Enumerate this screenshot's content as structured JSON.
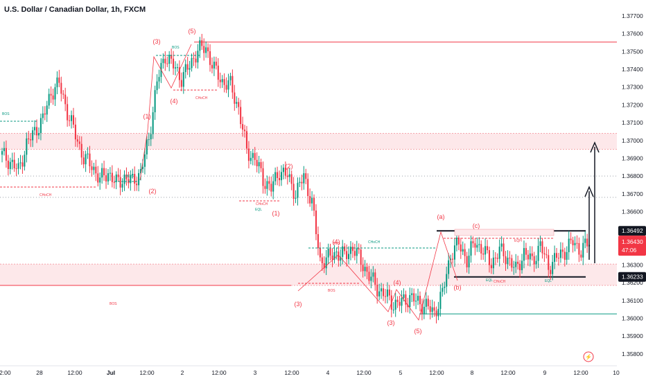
{
  "header": {
    "symbol_title": "U.S. Dollar / Canadian Dollar, 1h, FXCM"
  },
  "colors": {
    "up": "#089981",
    "down": "#f23645",
    "zone": "#fde8ea",
    "resistance_line": "#f23645",
    "support_line": "#089981",
    "price_tag_dark": "#131722",
    "current_tag": "#f23645"
  },
  "chart_data": {
    "type": "candlestick",
    "title": "U.S. Dollar / Canadian Dollar, 1h, FXCM",
    "y_axis": {
      "range": [
        1.358,
        1.3773
      ],
      "ticks": [
        "1.37700",
        "1.37600",
        "1.37500",
        "1.37400",
        "1.37300",
        "1.37200",
        "1.37100",
        "1.37000",
        "1.36900",
        "1.36800",
        "1.36700",
        "1.36600",
        "1.36300",
        "1.36200",
        "1.36100",
        "1.36000",
        "1.35900",
        "1.35800"
      ],
      "ticks_numeric": [
        1.377,
        1.376,
        1.375,
        1.374,
        1.373,
        1.372,
        1.371,
        1.37,
        1.369,
        1.368,
        1.367,
        1.366,
        1.363,
        1.362,
        1.361,
        1.36,
        1.359,
        1.358
      ]
    },
    "x_axis": {
      "labels": [
        "12:00",
        "28",
        "12:00",
        "Jul",
        "12:00",
        "2",
        "12:00",
        "3",
        "12:00",
        "4",
        "12:00",
        "5",
        "12:00",
        "8",
        "12:00",
        "9",
        "12:00",
        "10"
      ],
      "bold_labels": [
        "Jul"
      ]
    },
    "price_tags": [
      {
        "value": "1.36492",
        "style": "dark"
      },
      {
        "value": "1.36430",
        "sub": "47:06",
        "style": "current"
      },
      {
        "value": "1.36233",
        "style": "dark"
      }
    ],
    "price_path": [
      [
        0,
        1.3692
      ],
      [
        4,
        1.3688
      ],
      [
        8,
        1.3683
      ],
      [
        12,
        1.3698
      ],
      [
        16,
        1.3705
      ],
      [
        20,
        1.3712
      ],
      [
        24,
        1.3727
      ],
      [
        28,
        1.3732
      ],
      [
        32,
        1.3716
      ],
      [
        36,
        1.3703
      ],
      [
        40,
        1.369
      ],
      [
        44,
        1.3686
      ],
      [
        48,
        1.3678
      ],
      [
        52,
        1.3682
      ],
      [
        56,
        1.3676
      ],
      [
        60,
        1.3679
      ],
      [
        64,
        1.3677
      ],
      [
        68,
        1.3682
      ],
      [
        72,
        1.3701
      ],
      [
        76,
        1.3733
      ],
      [
        80,
        1.3748
      ],
      [
        84,
        1.3742
      ],
      [
        88,
        1.3735
      ],
      [
        92,
        1.3742
      ],
      [
        96,
        1.3751
      ],
      [
        100,
        1.3752
      ],
      [
        104,
        1.374
      ],
      [
        108,
        1.3733
      ],
      [
        112,
        1.3731
      ],
      [
        116,
        1.3718
      ],
      [
        120,
        1.3694
      ],
      [
        124,
        1.369
      ],
      [
        128,
        1.3678
      ],
      [
        132,
        1.3673
      ],
      [
        136,
        1.3683
      ],
      [
        140,
        1.368
      ],
      [
        144,
        1.367
      ],
      [
        148,
        1.368
      ],
      [
        152,
        1.3665
      ],
      [
        156,
        1.3632
      ],
      [
        160,
        1.3634
      ],
      [
        164,
        1.3637
      ],
      [
        168,
        1.3635
      ],
      [
        172,
        1.364
      ],
      [
        176,
        1.3632
      ],
      [
        180,
        1.3624
      ],
      [
        184,
        1.3617
      ],
      [
        188,
        1.3613
      ],
      [
        192,
        1.3608
      ],
      [
        196,
        1.3609
      ],
      [
        200,
        1.3612
      ],
      [
        204,
        1.3609
      ],
      [
        208,
        1.3607
      ],
      [
        212,
        1.3603
      ],
      [
        216,
        1.3614
      ],
      [
        220,
        1.3636
      ],
      [
        224,
        1.3642
      ],
      [
        228,
        1.3633
      ],
      [
        232,
        1.3643
      ],
      [
        236,
        1.3638
      ],
      [
        240,
        1.3631
      ],
      [
        244,
        1.3638
      ],
      [
        248,
        1.3634
      ],
      [
        252,
        1.3627
      ],
      [
        256,
        1.3637
      ],
      [
        260,
        1.3632
      ],
      [
        264,
        1.3641
      ],
      [
        268,
        1.3629
      ],
      [
        272,
        1.3634
      ],
      [
        276,
        1.3638
      ],
      [
        280,
        1.3643
      ],
      [
        284,
        1.3638
      ],
      [
        288,
        1.3643
      ]
    ],
    "horizontal_lines": [
      {
        "value": 1.37553,
        "color": "resistance"
      },
      {
        "value": 1.36492,
        "color": "box_top"
      },
      {
        "value": 1.36233,
        "color": "box_bottom"
      },
      {
        "value": 1.36025,
        "color": "support"
      },
      {
        "value": 1.36185,
        "color": "resistance"
      }
    ],
    "zones": [
      {
        "from": 1.3695,
        "to": 1.3704
      },
      {
        "from": 1.36185,
        "to": 1.36305
      }
    ],
    "annotations": {
      "waves_red": [
        "(3)",
        "(5)",
        "(1)",
        "(4)",
        "(2)",
        "(2)",
        "(1)",
        "(3)",
        "(4)",
        "(4)",
        "(3)",
        "(5)",
        "(a)",
        "(c)",
        "(b)"
      ],
      "small_labels": [
        "BOS",
        "CHoCH",
        "BOS",
        "CHoCH",
        "BOS",
        "CHoCH",
        "BOS",
        "EQL",
        "CHoCH",
        "BOS",
        "BOS",
        "EQH",
        "EQL",
        "CHoCH",
        "EQL"
      ]
    }
  }
}
